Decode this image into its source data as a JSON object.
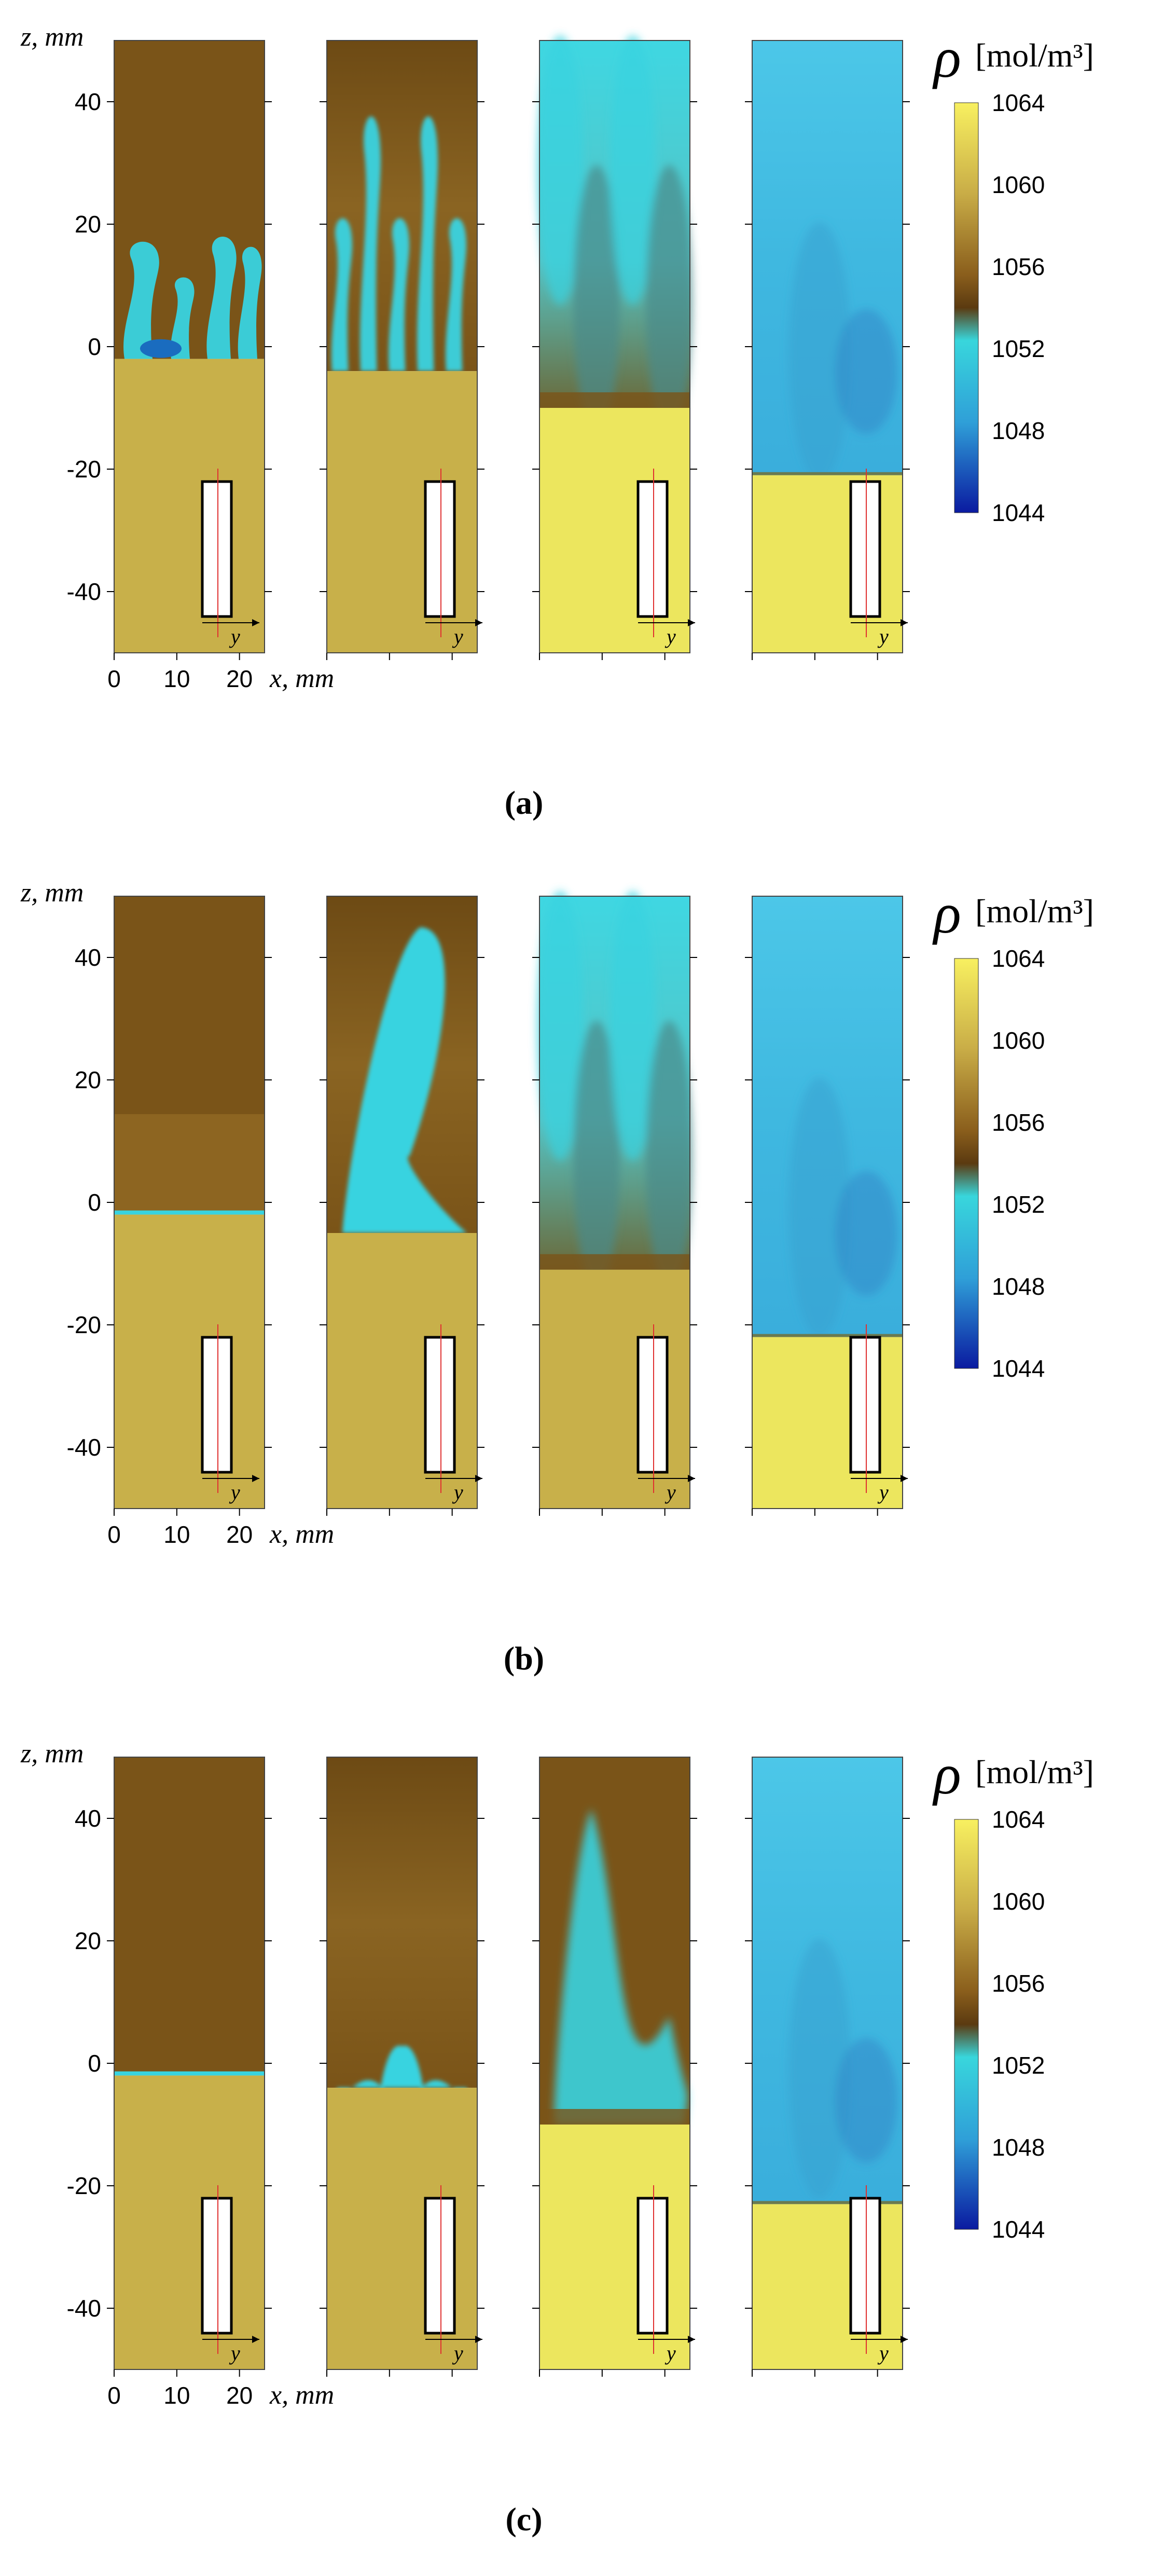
{
  "figure": {
    "z_axis_label": "z, mm",
    "x_axis_label": "x, mm",
    "colorbar": {
      "symbol": "ρ",
      "unit": "[mol/m³]",
      "ticks": [
        "1064",
        "1060",
        "1056",
        "1052",
        "1048",
        "1044"
      ],
      "range": [
        1044,
        1064
      ]
    },
    "z_ticks": [
      "40",
      "20",
      "0",
      "-20",
      "-40"
    ],
    "x_ticks": [
      "0",
      "10",
      "20"
    ],
    "inset_label": "y",
    "colors": {
      "dark_brown": "#7a5418",
      "mid_brown": "#9a7228",
      "tan": "#c8b04a",
      "light_yellow": "#ece65e",
      "cyan": "#38d3e0",
      "light_cyan": "#54c9e6",
      "blue": "#1a6cbf",
      "navy": "#1a1a80"
    }
  },
  "panels": [
    {
      "caption": "(a)",
      "frames": [
        {
          "interface_z": -2,
          "lower_shade": "tan"
        },
        {
          "interface_z": -4,
          "lower_shade": "tan"
        },
        {
          "interface_z": -10,
          "lower_shade": "light_yellow"
        },
        {
          "interface_z": -21,
          "lower_shade": "light_yellow"
        }
      ]
    },
    {
      "caption": "(b)",
      "frames": [
        {
          "interface_z": -2,
          "lower_shade": "tan"
        },
        {
          "interface_z": -5,
          "lower_shade": "tan"
        },
        {
          "interface_z": -11,
          "lower_shade": "tan"
        },
        {
          "interface_z": -22,
          "lower_shade": "light_yellow"
        }
      ]
    },
    {
      "caption": "(c)",
      "frames": [
        {
          "interface_z": -2,
          "lower_shade": "tan"
        },
        {
          "interface_z": -4,
          "lower_shade": "tan"
        },
        {
          "interface_z": -10,
          "lower_shade": "light_yellow"
        },
        {
          "interface_z": -23,
          "lower_shade": "light_yellow"
        }
      ]
    }
  ]
}
